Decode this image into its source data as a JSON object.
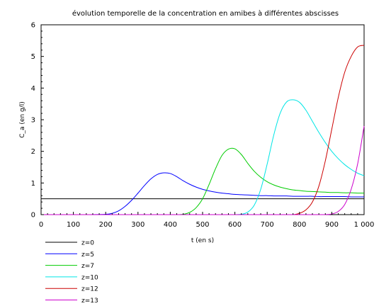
{
  "chart_data": {
    "type": "line",
    "title": "évolution temporelle de la concentration en amibes à différentes abscisses",
    "xlabel": "t (en s)",
    "ylabel": "C_a (en g/l)",
    "xlim": [
      0,
      1000
    ],
    "ylim": [
      0,
      6
    ],
    "x_ticks": [
      0,
      100,
      200,
      300,
      400,
      500,
      600,
      700,
      800,
      900,
      1000
    ],
    "x_tick_labels": [
      "0",
      "100",
      "200",
      "300",
      "400",
      "500",
      "600",
      "700",
      "800",
      "900",
      "1 000"
    ],
    "y_ticks": [
      0,
      1,
      2,
      3,
      4,
      5,
      6
    ],
    "y_tick_labels": [
      "0",
      "1",
      "2",
      "3",
      "4",
      "5",
      "6"
    ],
    "grid": false,
    "legend_position": "bottom-left",
    "x": [
      0,
      50,
      100,
      150,
      200,
      220,
      240,
      260,
      280,
      300,
      320,
      340,
      360,
      380,
      400,
      420,
      440,
      460,
      480,
      500,
      520,
      540,
      560,
      580,
      600,
      620,
      640,
      660,
      680,
      700,
      720,
      740,
      760,
      780,
      800,
      820,
      840,
      860,
      880,
      900,
      920,
      940,
      960,
      980,
      1000
    ],
    "series": [
      {
        "name": "z=0",
        "color": "#000000",
        "values": [
          0.5,
          0.5,
          0.5,
          0.5,
          0.5,
          0.5,
          0.5,
          0.5,
          0.5,
          0.5,
          0.5,
          0.5,
          0.5,
          0.5,
          0.5,
          0.5,
          0.5,
          0.5,
          0.5,
          0.5,
          0.5,
          0.5,
          0.5,
          0.5,
          0.5,
          0.5,
          0.5,
          0.5,
          0.5,
          0.5,
          0.5,
          0.5,
          0.5,
          0.5,
          0.5,
          0.5,
          0.5,
          0.5,
          0.5,
          0.5,
          0.5,
          0.5,
          0.5,
          0.5,
          0.5
        ]
      },
      {
        "name": "z=5",
        "color": "#0000ff",
        "values": [
          0,
          0,
          0,
          0,
          0.01,
          0.04,
          0.12,
          0.26,
          0.45,
          0.68,
          0.92,
          1.13,
          1.27,
          1.32,
          1.3,
          1.2,
          1.07,
          0.96,
          0.87,
          0.8,
          0.75,
          0.71,
          0.68,
          0.66,
          0.64,
          0.63,
          0.62,
          0.61,
          0.6,
          0.6,
          0.59,
          0.59,
          0.59,
          0.58,
          0.58,
          0.58,
          0.58,
          0.57,
          0.57,
          0.57,
          0.57,
          0.57,
          0.56,
          0.56,
          0.56
        ]
      },
      {
        "name": "z=7",
        "color": "#00cc00",
        "values": [
          0,
          0,
          0,
          0,
          0,
          0,
          0,
          0,
          0,
          0,
          0,
          0,
          0,
          0,
          0,
          0,
          0.01,
          0.07,
          0.22,
          0.5,
          0.95,
          1.45,
          1.87,
          2.07,
          2.08,
          1.9,
          1.62,
          1.37,
          1.18,
          1.04,
          0.94,
          0.87,
          0.82,
          0.78,
          0.76,
          0.74,
          0.73,
          0.72,
          0.71,
          0.7,
          0.7,
          0.69,
          0.69,
          0.68,
          0.68
        ]
      },
      {
        "name": "z=10",
        "color": "#00e5e5",
        "values": [
          0,
          0,
          0,
          0,
          0,
          0,
          0,
          0,
          0,
          0,
          0,
          0,
          0,
          0,
          0,
          0,
          0,
          0,
          0,
          0,
          0,
          0,
          0,
          0,
          0,
          0.01,
          0.08,
          0.3,
          0.8,
          1.6,
          2.5,
          3.2,
          3.56,
          3.63,
          3.55,
          3.3,
          2.95,
          2.6,
          2.28,
          2.0,
          1.77,
          1.58,
          1.43,
          1.31,
          1.23
        ]
      },
      {
        "name": "z=12",
        "color": "#cc0000",
        "values": [
          0,
          0,
          0,
          0,
          0,
          0,
          0,
          0,
          0,
          0,
          0,
          0,
          0,
          0,
          0,
          0,
          0,
          0,
          0,
          0,
          0,
          0,
          0,
          0,
          0,
          0,
          0,
          0,
          0,
          0,
          0,
          0,
          0,
          0,
          0.04,
          0.15,
          0.4,
          0.9,
          1.7,
          2.7,
          3.7,
          4.5,
          5.0,
          5.3,
          5.35
        ]
      },
      {
        "name": "z=13",
        "color": "#cc00cc",
        "values": [
          0,
          0,
          0,
          0,
          0,
          0,
          0,
          0,
          0,
          0,
          0,
          0,
          0,
          0,
          0,
          0,
          0,
          0,
          0,
          0,
          0,
          0,
          0,
          0,
          0,
          0,
          0,
          0,
          0,
          0,
          0,
          0,
          0,
          0,
          0,
          0,
          0,
          0,
          0,
          0.02,
          0.1,
          0.32,
          0.8,
          1.6,
          2.8
        ]
      }
    ]
  }
}
